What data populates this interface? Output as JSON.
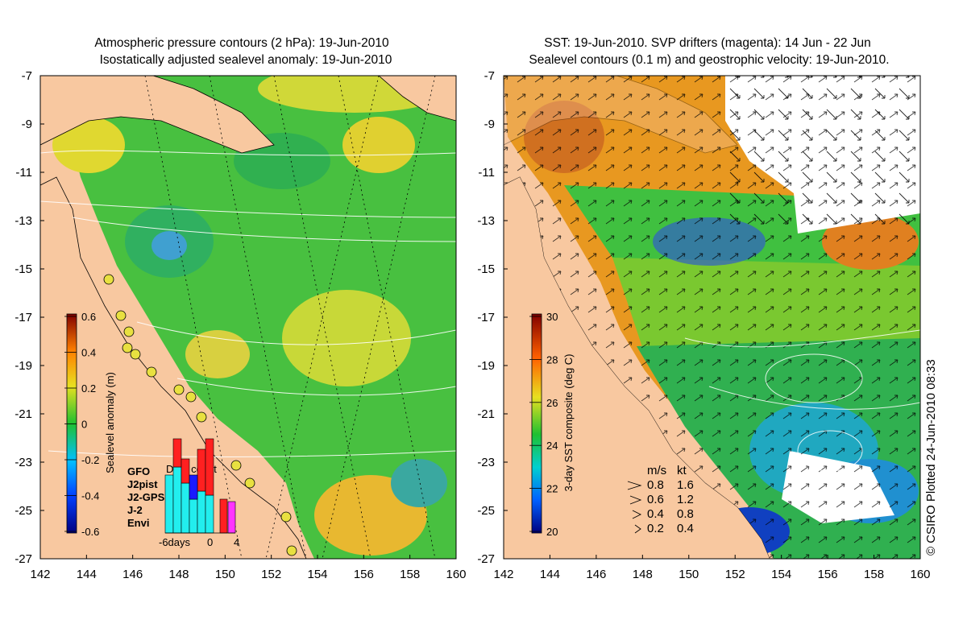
{
  "left_panel": {
    "title_line1": "Atmospheric pressure contours (2 hPa): 19-Jun-2010",
    "title_line2": "Isostatically adjusted sealevel anomaly: 19-Jun-2010",
    "x_ticks": [
      "142",
      "144",
      "146",
      "148",
      "150",
      "152",
      "154",
      "156",
      "158",
      "160"
    ],
    "y_ticks": [
      "-7",
      "-9",
      "-11",
      "-13",
      "-15",
      "-17",
      "-19",
      "-21",
      "-23",
      "-25",
      "-27"
    ],
    "colorbar_label": "Sealevel anomaly (m)",
    "colorbar_ticks": [
      "0.6",
      "0.4",
      "0.2",
      "0",
      "-0.2",
      "-0.4",
      "-0.6"
    ],
    "legend": {
      "title": "Data count",
      "items": [
        {
          "label": "GFO",
          "color": "#1a1aff"
        },
        {
          "label": "J2pist",
          "color": "#22dd22"
        },
        {
          "label": "J2-GPS",
          "color": "#ff33ff"
        },
        {
          "label": "J-2",
          "color": "#ff2020"
        },
        {
          "label": "Envi",
          "color": "#22eeee"
        }
      ],
      "x_labels": [
        "-6days",
        "0",
        "4"
      ]
    }
  },
  "right_panel": {
    "title_line1": "SST: 19-Jun-2010. SVP drifters (magenta): 14 Jun - 22 Jun",
    "title_line2": "Sealevel contours (0.1 m) and geostrophic velocity: 19-Jun-2010.",
    "x_ticks": [
      "142",
      "144",
      "146",
      "148",
      "150",
      "152",
      "154",
      "156",
      "158",
      "160"
    ],
    "y_ticks": [
      "-7",
      "-9",
      "-11",
      "-13",
      "-15",
      "-17",
      "-19",
      "-21",
      "-23",
      "-25",
      "-27"
    ],
    "colorbar_label": "3-day SST composite (deg C)",
    "colorbar_ticks": [
      "30",
      "28",
      "26",
      "24",
      "22",
      "20"
    ],
    "velocity_legend": {
      "header_ms": "m/s",
      "header_kt": "kt",
      "rows": [
        {
          "ms": "0.8",
          "kt": "1.6"
        },
        {
          "ms": "0.6",
          "kt": "1.2"
        },
        {
          "ms": "0.4",
          "kt": "0.8"
        },
        {
          "ms": "0.2",
          "kt": "0.4"
        }
      ]
    }
  },
  "credit": "© CSIRO Plotted 24-Jun-2010 08:33",
  "colors": {
    "land": "#f8c8a0",
    "ocean_green": "#3cc04a"
  }
}
